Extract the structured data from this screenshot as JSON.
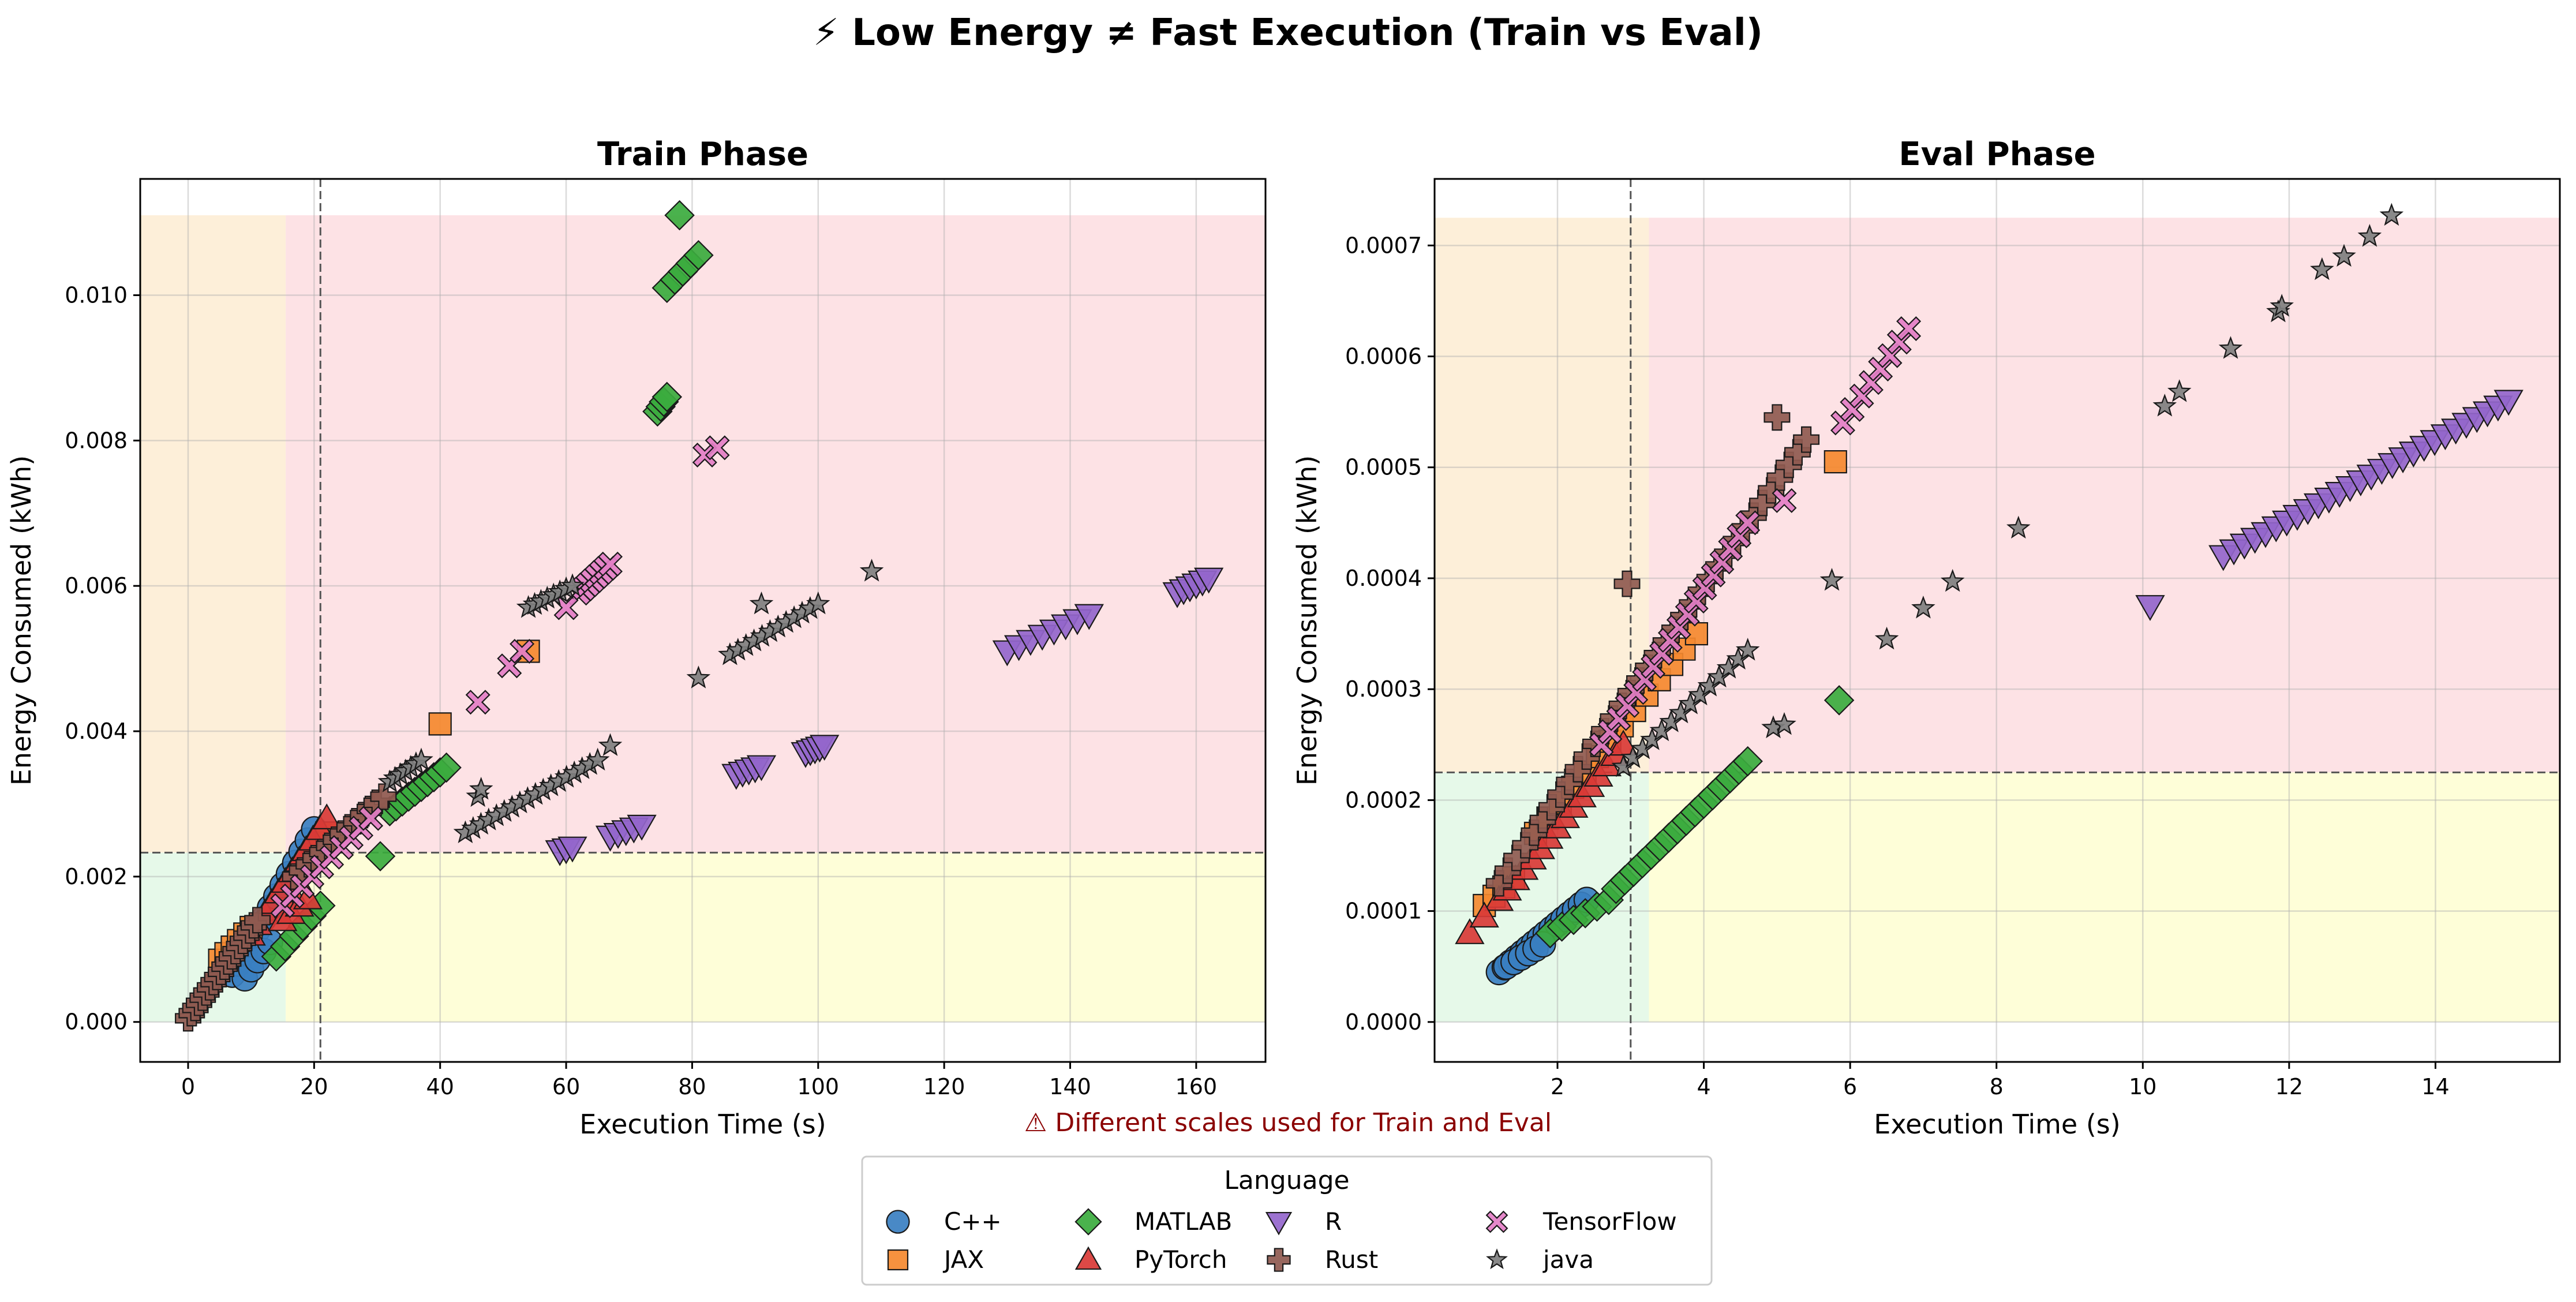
{
  "figure": {
    "title": "⚡ Low Energy ≠ Fast Execution (Train vs Eval)",
    "note": "⚠ Different scales used for Train and Eval",
    "legend_title": "Language"
  },
  "languages": [
    {
      "name": "C++",
      "color": "#3a7fc1",
      "marker": "circle"
    },
    {
      "name": "JAX",
      "color": "#f5892f",
      "marker": "square"
    },
    {
      "name": "MATLAB",
      "color": "#3bab3e",
      "marker": "diamond"
    },
    {
      "name": "PyTorch",
      "color": "#d93a36",
      "marker": "triangle-up"
    },
    {
      "name": "R",
      "color": "#9466cc",
      "marker": "triangle-down"
    },
    {
      "name": "Rust",
      "color": "#8f5a50",
      "marker": "plus"
    },
    {
      "name": "TensorFlow",
      "color": "#e37ec5",
      "marker": "x"
    },
    {
      "name": "java",
      "color": "#7f7f7f",
      "marker": "star"
    }
  ],
  "quadrant_colors": {
    "low_time_low_energy": "#e6f9e9",
    "low_time_high_energy": "#fdefd9",
    "high_time_low_energy": "#fefed8",
    "high_time_high_energy": "#fde2e5"
  },
  "chart_data": [
    {
      "type": "scatter",
      "title": "Train Phase",
      "xlabel": "Execution Time (s)",
      "ylabel": "Energy Consumed (kWh)",
      "xlim": [
        -7.6,
        171
      ],
      "ylim": [
        -0.00055,
        0.0116
      ],
      "xticks": [
        0,
        20,
        40,
        60,
        80,
        100,
        120,
        140,
        160
      ],
      "xtick_labels": [
        "0",
        "20",
        "40",
        "60",
        "80",
        "100",
        "120",
        "140",
        "160"
      ],
      "yticks": [
        0,
        0.002,
        0.004,
        0.006,
        0.008,
        0.01
      ],
      "ytick_labels": [
        "0.000",
        "0.002",
        "0.004",
        "0.006",
        "0.008",
        "0.010"
      ],
      "grid": true,
      "threshold_x": 21,
      "threshold_y": 0.00233,
      "region_x_split": 15.5,
      "region_x_max": 171,
      "region_y_max": 0.0111,
      "series": [
        {
          "name": "C++",
          "segments": [
            {
              "x0": 7,
              "y0": 0.00065,
              "x1": 20,
              "y1": 0.00265,
              "n": 14
            },
            {
              "x0": 9,
              "y0": 0.0006,
              "x1": 13,
              "y1": 0.0011,
              "n": 5
            }
          ]
        },
        {
          "name": "JAX",
          "segments": [
            {
              "x0": 5,
              "y0": 0.00085,
              "x1": 10,
              "y1": 0.0013,
              "n": 6
            },
            {
              "x0": 20,
              "y0": 0.0023,
              "x1": 22,
              "y1": 0.0026,
              "n": 3
            }
          ],
          "points": [
            [
              40,
              0.0041
            ],
            [
              54,
              0.0051
            ]
          ]
        },
        {
          "name": "MATLAB",
          "segments": [
            {
              "x0": 14,
              "y0": 0.0009,
              "x1": 21,
              "y1": 0.0016,
              "n": 6
            },
            {
              "x0": 32,
              "y0": 0.0029,
              "x1": 41,
              "y1": 0.0035,
              "n": 10
            },
            {
              "x0": 74.5,
              "y0": 0.0084,
              "x1": 76,
              "y1": 0.0086,
              "n": 4
            },
            {
              "x0": 76,
              "y0": 0.0101,
              "x1": 81,
              "y1": 0.01055,
              "n": 5
            }
          ],
          "points": [
            [
              30.5,
              0.00228
            ],
            [
              78,
              0.0111
            ]
          ]
        },
        {
          "name": "PyTorch",
          "segments": [
            {
              "x0": 10,
              "y0": 0.0012,
              "x1": 22,
              "y1": 0.0028,
              "n": 12
            },
            {
              "x0": 15,
              "y0": 0.0014,
              "x1": 19,
              "y1": 0.0017,
              "n": 4
            }
          ]
        },
        {
          "name": "R",
          "segments": [
            {
              "x0": 59,
              "y0": 0.00235,
              "x1": 61,
              "y1": 0.0024,
              "n": 3
            },
            {
              "x0": 67,
              "y0": 0.00255,
              "x1": 72,
              "y1": 0.0027,
              "n": 5
            },
            {
              "x0": 87,
              "y0": 0.0034,
              "x1": 91,
              "y1": 0.00352,
              "n": 5
            },
            {
              "x0": 98,
              "y0": 0.0037,
              "x1": 101,
              "y1": 0.0038,
              "n": 5
            },
            {
              "x0": 130,
              "y0": 0.0051,
              "x1": 143,
              "y1": 0.0056,
              "n": 8
            },
            {
              "x0": 157,
              "y0": 0.0059,
              "x1": 162,
              "y1": 0.0061,
              "n": 6
            }
          ]
        },
        {
          "name": "Rust",
          "segments": [
            {
              "x0": 0,
              "y0": 5e-05,
              "x1": 11,
              "y1": 0.0014,
              "n": 20
            },
            {
              "x0": 17,
              "y0": 0.002,
              "x1": 31,
              "y1": 0.0031,
              "n": 14
            }
          ]
        },
        {
          "name": "TensorFlow",
          "segments": [
            {
              "x0": 15,
              "y0": 0.0016,
              "x1": 29,
              "y1": 0.0028,
              "n": 10
            },
            {
              "x0": 62,
              "y0": 0.0059,
              "x1": 67,
              "y1": 0.0063,
              "n": 8
            }
          ],
          "points": [
            [
              46,
              0.0044
            ],
            [
              51,
              0.0049
            ],
            [
              53,
              0.0051
            ],
            [
              60,
              0.0057
            ],
            [
              82,
              0.0078
            ],
            [
              84,
              0.0079
            ]
          ]
        },
        {
          "name": "java",
          "segments": [
            {
              "x0": 32,
              "y0": 0.0033,
              "x1": 37,
              "y1": 0.0036,
              "n": 7
            },
            {
              "x0": 44,
              "y0": 0.0026,
              "x1": 65,
              "y1": 0.0036,
              "n": 18
            },
            {
              "x0": 54,
              "y0": 0.0057,
              "x1": 61,
              "y1": 0.006,
              "n": 8
            },
            {
              "x0": 86,
              "y0": 0.00505,
              "x1": 100,
              "y1": 0.00575,
              "n": 12
            }
          ],
          "points": [
            [
              46,
              0.0031
            ],
            [
              46.5,
              0.0032
            ],
            [
              67,
              0.0038
            ],
            [
              81,
              0.00473
            ],
            [
              91,
              0.00575
            ],
            [
              108.5,
              0.0062
            ]
          ]
        }
      ]
    },
    {
      "type": "scatter",
      "title": "Eval Phase",
      "xlabel": "Execution Time (s)",
      "ylabel": "Energy Consumed (kWh)",
      "xlim": [
        0.32,
        15.7
      ],
      "ylim": [
        -3.6e-05,
        0.00076
      ],
      "xticks": [
        2,
        4,
        6,
        8,
        10,
        12,
        14
      ],
      "xtick_labels": [
        "2",
        "4",
        "6",
        "8",
        "10",
        "12",
        "14"
      ],
      "yticks": [
        0,
        0.0001,
        0.0002,
        0.0003,
        0.0004,
        0.0005,
        0.0006,
        0.0007
      ],
      "ytick_labels": [
        "0.0000",
        "0.0001",
        "0.0002",
        "0.0003",
        "0.0004",
        "0.0005",
        "0.0006",
        "0.0007"
      ],
      "grid": true,
      "threshold_x": 3.0,
      "threshold_y": 0.000225,
      "region_x_split": 3.25,
      "region_x_max": 15.7,
      "region_y_max": 0.000725,
      "series": [
        {
          "name": "C++",
          "segments": [
            {
              "x0": 1.2,
              "y0": 4.5e-05,
              "x1": 2.4,
              "y1": 0.00011,
              "n": 16
            },
            {
              "x0": 1.3,
              "y0": 5e-05,
              "x1": 1.8,
              "y1": 7e-05,
              "n": 6
            }
          ]
        },
        {
          "name": "JAX",
          "segments": [
            {
              "x0": 1.0,
              "y0": 0.000105,
              "x1": 1.4,
              "y1": 0.00013,
              "n": 4
            },
            {
              "x0": 1.7,
              "y0": 0.00017,
              "x1": 3.9,
              "y1": 0.00035,
              "n": 14
            }
          ],
          "points": [
            [
              5.8,
              0.000505
            ]
          ]
        },
        {
          "name": "MATLAB",
          "segments": [
            {
              "x0": 1.9,
              "y0": 8e-05,
              "x1": 2.7,
              "y1": 0.00011,
              "n": 6
            },
            {
              "x0": 2.8,
              "y0": 0.00012,
              "x1": 4.6,
              "y1": 0.000235,
              "n": 16
            }
          ],
          "points": [
            [
              5.85,
              0.00029
            ]
          ]
        },
        {
          "name": "PyTorch",
          "segments": [
            {
              "x0": 1.2,
              "y0": 0.00011,
              "x1": 2.9,
              "y1": 0.00025,
              "n": 16
            }
          ],
          "points": [
            [
              0.8,
              8e-05
            ],
            [
              1.0,
              9.5e-05
            ]
          ]
        },
        {
          "name": "R",
          "segments": [
            {
              "x0": 11.1,
              "y0": 0.00042,
              "x1": 15.0,
              "y1": 0.00056,
              "n": 28
            }
          ],
          "points": [
            [
              10.1,
              0.000375
            ]
          ]
        },
        {
          "name": "Rust",
          "segments": [
            {
              "x0": 1.2,
              "y0": 0.000125,
              "x1": 5.4,
              "y1": 0.000525,
              "n": 36
            }
          ],
          "points": [
            [
              2.95,
              0.000395
            ],
            [
              5.0,
              0.000545
            ]
          ]
        },
        {
          "name": "TensorFlow",
          "segments": [
            {
              "x0": 2.6,
              "y0": 0.00025,
              "x1": 4.6,
              "y1": 0.00045,
              "n": 18
            },
            {
              "x0": 5.9,
              "y0": 0.00054,
              "x1": 6.8,
              "y1": 0.000625,
              "n": 8
            }
          ],
          "points": [
            [
              5.1,
              0.00047
            ]
          ]
        },
        {
          "name": "java",
          "segments": [
            {
              "x0": 2.9,
              "y0": 0.00023,
              "x1": 4.6,
              "y1": 0.000335,
              "n": 14
            }
          ],
          "points": [
            [
              4.95,
              0.000265
            ],
            [
              5.1,
              0.000268
            ],
            [
              5.75,
              0.000398
            ],
            [
              6.5,
              0.000345
            ],
            [
              7.0,
              0.000373
            ],
            [
              7.4,
              0.000397
            ],
            [
              8.3,
              0.000445
            ],
            [
              10.3,
              0.000555
            ],
            [
              10.5,
              0.000568
            ],
            [
              11.2,
              0.000607
            ],
            [
              11.85,
              0.00064
            ],
            [
              11.9,
              0.000645
            ],
            [
              12.45,
              0.000678
            ],
            [
              12.75,
              0.00069
            ],
            [
              13.1,
              0.000708
            ],
            [
              13.4,
              0.000727
            ]
          ]
        }
      ]
    }
  ]
}
